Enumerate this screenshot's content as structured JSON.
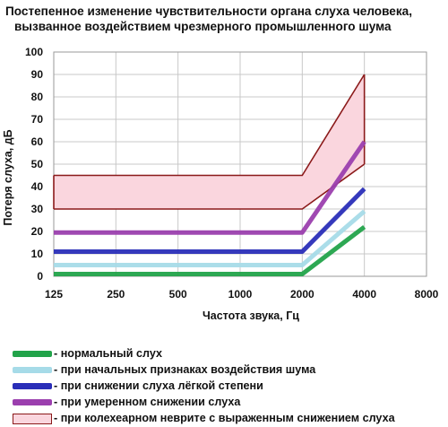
{
  "chart_data": {
    "type": "line",
    "title_line1": "Постепенное изменение чувствительности органа слуха человека,",
    "title_line2": "вызванное воздействием чрезмерного промышленного шума",
    "xlabel": "Частота звука, Гц",
    "ylabel": "Потеря слуха, дБ",
    "x_scale": "log2",
    "x_ticks": [
      125,
      250,
      500,
      1000,
      2000,
      4000,
      8000
    ],
    "x_tick_labels": [
      "125",
      "250",
      "500",
      "1000",
      "2000",
      "4000",
      "8000"
    ],
    "ylim": [
      0,
      100
    ],
    "y_ticks": [
      0,
      10,
      20,
      30,
      40,
      50,
      60,
      70,
      80,
      90,
      100
    ],
    "grid": true,
    "legend_position": "bottom",
    "series": [
      {
        "name": "- нормальный слух",
        "color": "#22a34a",
        "x": [
          125,
          2000,
          4000
        ],
        "y": [
          1,
          1,
          22
        ]
      },
      {
        "name": "- при начальных признаках воздействия шума",
        "color": "#a6dbe8",
        "x": [
          125,
          2000,
          4000
        ],
        "y": [
          5,
          5,
          29
        ]
      },
      {
        "name": "- при снижении слуха лёгкой степени",
        "color": "#2a2eb8",
        "x": [
          125,
          2000,
          4000
        ],
        "y": [
          11,
          11,
          39
        ]
      },
      {
        "name": "- при умеренном снижении слуха",
        "color": "#9b3fae",
        "x": [
          125,
          2000,
          4000
        ],
        "y": [
          19.5,
          19.5,
          60
        ]
      },
      {
        "name": "- при колехеарном неврите с выраженным снижением слуха",
        "type": "band",
        "fill": "#fad6de",
        "stroke": "#8b1a1a",
        "x": [
          125,
          2000,
          4000
        ],
        "upper": [
          45,
          45,
          90
        ],
        "lower": [
          30,
          30,
          50
        ]
      }
    ]
  }
}
